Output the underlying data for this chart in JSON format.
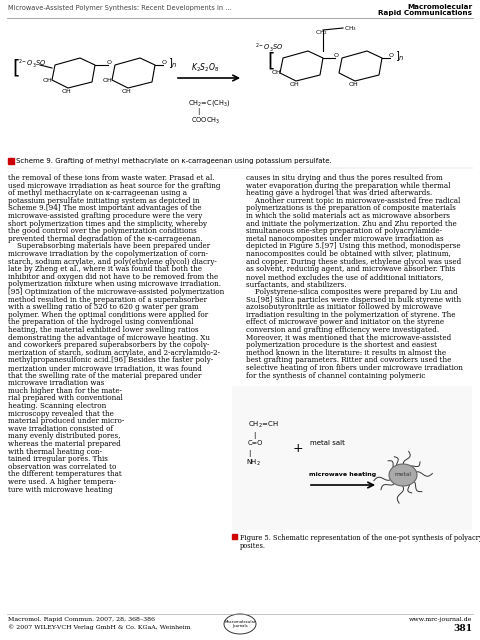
{
  "page_background": "#ffffff",
  "header_left": "Microwave-Assisted Polymer Synthesis: Recent Developments in ...",
  "header_right_line1": "Macromolecular",
  "header_right_line2": "Rapid Communications",
  "scheme_caption": "Scheme 9. Grafting of methyl methacrylate on κ-carrageenan using potassium persulfate.",
  "col1_lines": [
    "the removal of these ions from waste water. Prasad et al.",
    "used microwave irradiation as heat source for the grafting",
    "of methyl methacrylate on κ-carrageenan using a",
    "potassium persulfate initiating system as depicted in",
    "Scheme 9.[94] The most important advantages of the",
    "microwave-assisted grafting procedure were the very",
    "short polymerization times and the simplicity, whereby",
    "the good control over the polymerization conditions",
    "prevented thermal degradation of the κ-carrageenan.",
    "    Superabsorbing materials have been prepared under",
    "microwave irradiation by the copolymerization of corn-",
    "starch, sodium acrylate, and poly(ethylene glycol) diacry-",
    "late by Zheng et al., where it was found that both the",
    "inhibitor and oxygen did not have to be removed from the",
    "polymerization mixture when using microwave irradiation.",
    "[95] Optimization of the microwave-assisted polymerization",
    "method resulted in the preparation of a superabsorber",
    "with a swelling ratio of 520 to 620 g water per gram",
    "polymer. When the optimal conditions were applied for",
    "the preparation of the hydrogel using conventional",
    "heating, the material exhibited lower swelling ratios",
    "demonstrating the advantage of microwave heating. Xu",
    "and coworkers prepared superabsorbers by the copoly-",
    "merization of starch, sodium acrylate, and 2-acrylamido-2-",
    "methylpropanesulfonic acid.[96] Besides the faster poly-",
    "merization under microwave irradiation, it was found",
    "that the swelling rate of the material prepared under",
    "microwave irradiation was",
    "much higher than for the mate-",
    "rial prepared with conventional",
    "heating. Scanning electron",
    "microscopy revealed that the",
    "material produced under micro-",
    "wave irradiation consisted of",
    "many evenly distributed pores,",
    "whereas the material prepared",
    "with thermal heating con-",
    "tained irregular pores. This",
    "observation was correlated to",
    "the different temperatures that",
    "were used. A higher tempera-",
    "ture with microwave heating"
  ],
  "col2_lines": [
    "causes in situ drying and thus the pores resulted from",
    "water evaporation during the preparation while thermal",
    "heating gave a hydrogel that was dried afterwards.",
    "    Another current topic in microwave-assisted free radical",
    "polymerizations is the preparation of composite materials",
    "in which the solid materials act as microwave absorbers",
    "and initiate the polymerization. Zhu and Zhu reported the",
    "simultaneous one-step preparation of polyacrylamide-",
    "metal nanocomposites under microwave irradiation as",
    "depicted in Figure 5.[97] Using this method, monodisperse",
    "nanocomposites could be obtained with silver, platinum,",
    "and copper. During these studies, ethylene glycol was used",
    "as solvent, reducing agent, and microwave absorber. This",
    "novel method excludes the use of additional initiators,",
    "surfactants, and stabilizers.",
    "    Polystyrene-silica composites were prepared by Liu and",
    "Su.[98] Silica particles were dispersed in bulk styrene with",
    "azoisobutyronitrile as initiator followed by microwave",
    "irradiation resulting in the polymerization of styrene. The",
    "effect of microwave power and initiator on the styrene",
    "conversion and grafting efficiency were investigated.",
    "Moreover, it was mentioned that the microwave-assisted",
    "polymerization procedure is the shortest and easiest",
    "method known in the literature: it results in almost the",
    "best grafting parameters. Ritter and coworkers used the",
    "selective heating of iron fibers under microwave irradiation",
    "for the synthesis of channel containing polymeric"
  ],
  "fig5_caption_line1": "Figure 5. Schematic representation of the one-pot synthesis of polyacrylamide-metal nanocom-",
  "fig5_caption_line2": "posites.",
  "footer_left_line1": "Macromol. Rapid Commun. 2007, 28, 368–386",
  "footer_left_line2": "© 2007 WILEY-VCH Verlag GmbH & Co. KGaA, Weinheim",
  "footer_right": "www.mrc-journal.de",
  "footer_page": "381"
}
